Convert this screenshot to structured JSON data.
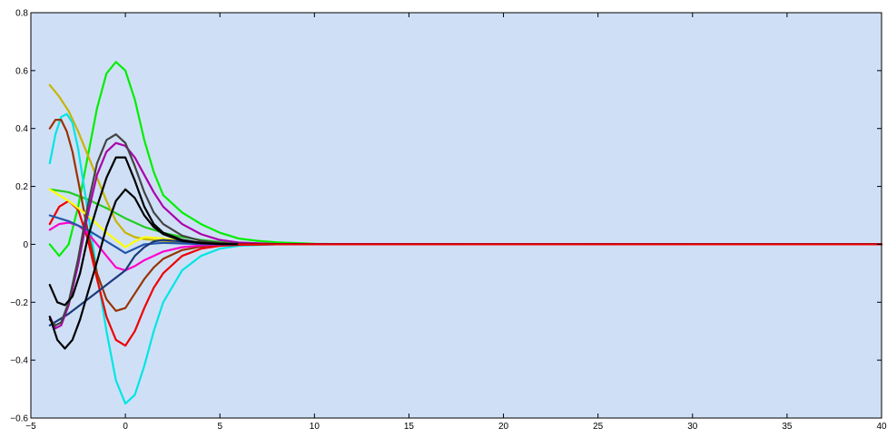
{
  "chart_data": {
    "type": "line",
    "title": "",
    "xlabel": "",
    "ylabel": "",
    "xlim": [
      -5,
      40
    ],
    "ylim": [
      -0.6,
      0.8
    ],
    "xticks": [
      -5,
      0,
      5,
      10,
      15,
      20,
      25,
      30,
      35,
      40
    ],
    "yticks": [
      -0.6,
      -0.4,
      -0.2,
      0,
      0.2,
      0.4,
      0.6,
      0.8
    ],
    "xtick_labels": [
      "−5",
      "0",
      "5",
      "10",
      "15",
      "20",
      "25",
      "30",
      "35",
      "40"
    ],
    "ytick_labels": [
      "−0.6",
      "−0.4",
      "−0.2",
      "0",
      "0.2",
      "0.4",
      "0.6",
      "0.8"
    ],
    "grid": false,
    "background": "#cfe0f6",
    "series": [
      {
        "color": "#00ee00",
        "x": [
          -4,
          -3.5,
          -3,
          -2.5,
          -2,
          -1.5,
          -1,
          -0.5,
          0,
          0.5,
          1,
          1.5,
          2,
          3,
          4,
          5,
          6,
          7,
          8,
          10,
          12,
          40
        ],
        "y": [
          0,
          -0.04,
          0.0,
          0.13,
          0.3,
          0.47,
          0.59,
          0.63,
          0.6,
          0.5,
          0.36,
          0.25,
          0.17,
          0.11,
          0.07,
          0.04,
          0.02,
          0.012,
          0.007,
          0.002,
          0,
          0
        ]
      },
      {
        "color": "#22cc22",
        "x": [
          -4,
          -3,
          -2,
          -1,
          0,
          1,
          2,
          3,
          4,
          5,
          6,
          8,
          40
        ],
        "y": [
          0.19,
          0.18,
          0.155,
          0.125,
          0.09,
          0.06,
          0.04,
          0.025,
          0.015,
          0.008,
          0.004,
          0.001,
          0
        ]
      },
      {
        "color": "#c8b400",
        "x": [
          -4,
          -3.5,
          -3,
          -2.5,
          -2,
          -1.5,
          -1,
          -0.5,
          0,
          0.5,
          1,
          2,
          3,
          4,
          5,
          6,
          8,
          40
        ],
        "y": [
          0.55,
          0.51,
          0.46,
          0.39,
          0.31,
          0.23,
          0.15,
          0.08,
          0.04,
          0.025,
          0.018,
          0.012,
          0.008,
          0.005,
          0.003,
          0.001,
          0,
          0
        ]
      },
      {
        "color": "#00e5e5",
        "x": [
          -4,
          -3.7,
          -3.4,
          -3.1,
          -2.8,
          -2.5,
          -2,
          -1.5,
          -1,
          -0.5,
          0,
          0.5,
          1,
          1.5,
          2,
          3,
          4,
          5,
          6,
          8,
          40
        ],
        "y": [
          0.28,
          0.38,
          0.44,
          0.45,
          0.42,
          0.33,
          0.12,
          -0.1,
          -0.3,
          -0.47,
          -0.55,
          -0.52,
          -0.42,
          -0.3,
          -0.2,
          -0.09,
          -0.04,
          -0.015,
          -0.005,
          0,
          0
        ]
      },
      {
        "color": "#993300",
        "x": [
          -4,
          -3.7,
          -3.4,
          -3.1,
          -2.8,
          -2.5,
          -2,
          -1.5,
          -1,
          -0.5,
          0,
          0.5,
          1,
          1.5,
          2,
          3,
          4,
          5,
          6,
          8,
          40
        ],
        "y": [
          0.4,
          0.43,
          0.43,
          0.39,
          0.32,
          0.22,
          0.05,
          -0.1,
          -0.19,
          -0.23,
          -0.22,
          -0.17,
          -0.12,
          -0.08,
          -0.05,
          -0.02,
          -0.008,
          -0.003,
          -0.001,
          0,
          0
        ]
      },
      {
        "color": "#ee0000",
        "x": [
          -4,
          -3.5,
          -3,
          -2.5,
          -2,
          -1.5,
          -1,
          -0.5,
          0,
          0.5,
          1,
          1.5,
          2,
          3,
          4,
          5,
          6,
          8,
          40
        ],
        "y": [
          0.07,
          0.13,
          0.15,
          0.12,
          0.02,
          -0.12,
          -0.25,
          -0.33,
          -0.35,
          -0.3,
          -0.22,
          -0.15,
          -0.1,
          -0.04,
          -0.015,
          -0.005,
          -0.002,
          0,
          0
        ]
      },
      {
        "color": "#ff00cc",
        "x": [
          -4,
          -3.5,
          -3,
          -2.5,
          -2,
          -1.5,
          -1,
          -0.5,
          0,
          0.5,
          1,
          2,
          3,
          4,
          5,
          6,
          8,
          40
        ],
        "y": [
          0.05,
          0.07,
          0.075,
          0.065,
          0.04,
          0.0,
          -0.04,
          -0.08,
          -0.09,
          -0.075,
          -0.055,
          -0.025,
          -0.01,
          -0.004,
          -0.001,
          0,
          0,
          0
        ]
      },
      {
        "color": "#ffff00",
        "x": [
          -4,
          -3,
          -2,
          -1,
          -0.5,
          0,
          0.5,
          1,
          2,
          3,
          4,
          5,
          6,
          8,
          40
        ],
        "y": [
          0.19,
          0.15,
          0.1,
          0.04,
          0.015,
          -0.01,
          0.01,
          0.025,
          0.02,
          0.012,
          0.007,
          0.004,
          0.002,
          0,
          0
        ]
      },
      {
        "color": "#2255aa",
        "x": [
          -4,
          -3,
          -2,
          -1,
          -0.5,
          0,
          0.5,
          1,
          2,
          3,
          4,
          5,
          6,
          8,
          40
        ],
        "y": [
          0.1,
          0.08,
          0.05,
          0.01,
          -0.01,
          -0.03,
          -0.015,
          0.0,
          0.005,
          0.003,
          0.001,
          0,
          0,
          0,
          0
        ]
      },
      {
        "color": "#1a3a7a",
        "x": [
          -4,
          -3,
          -2,
          -1,
          0,
          0.5,
          1,
          1.5,
          2,
          3,
          4,
          5,
          6,
          8,
          40
        ],
        "y": [
          -0.28,
          -0.24,
          -0.19,
          -0.14,
          -0.09,
          -0.04,
          -0.01,
          0.01,
          0.015,
          0.01,
          0.006,
          0.003,
          0.001,
          0,
          0
        ]
      },
      {
        "color": "#aa00aa",
        "x": [
          -4,
          -3.7,
          -3.4,
          -3,
          -2.5,
          -2,
          -1.5,
          -1,
          -0.5,
          0,
          0.5,
          1,
          1.5,
          2,
          3,
          4,
          5,
          6,
          8,
          40
        ],
        "y": [
          -0.25,
          -0.29,
          -0.28,
          -0.21,
          -0.07,
          0.1,
          0.24,
          0.32,
          0.35,
          0.34,
          0.3,
          0.24,
          0.18,
          0.13,
          0.07,
          0.035,
          0.015,
          0.006,
          0.001,
          0
        ]
      },
      {
        "color": "#444444",
        "x": [
          -4,
          -3.7,
          -3.4,
          -3,
          -2.5,
          -2,
          -1.5,
          -1,
          -0.5,
          0,
          0.5,
          1,
          1.5,
          2,
          3,
          4,
          5,
          6,
          8,
          40
        ],
        "y": [
          -0.26,
          -0.28,
          -0.27,
          -0.2,
          -0.05,
          0.13,
          0.28,
          0.36,
          0.38,
          0.35,
          0.27,
          0.18,
          0.11,
          0.07,
          0.03,
          0.012,
          0.005,
          0.002,
          0,
          0
        ]
      },
      {
        "color": "#000000",
        "x": [
          -4,
          -3.6,
          -3.2,
          -2.8,
          -2.4,
          -2,
          -1.5,
          -1,
          -0.5,
          0,
          0.5,
          1,
          1.5,
          2,
          3,
          4,
          5,
          6,
          8,
          40
        ],
        "y": [
          -0.14,
          -0.2,
          -0.21,
          -0.18,
          -0.1,
          0.02,
          0.13,
          0.23,
          0.3,
          0.3,
          0.22,
          0.13,
          0.07,
          0.04,
          0.015,
          0.005,
          0.002,
          0,
          0,
          0
        ]
      },
      {
        "color": "#000000",
        "x": [
          -4,
          -3.6,
          -3.2,
          -2.8,
          -2.4,
          -2,
          -1.5,
          -1,
          -0.5,
          0,
          0.5,
          1,
          1.5,
          2,
          3,
          4,
          5,
          6,
          8,
          40
        ],
        "y": [
          -0.25,
          -0.33,
          -0.36,
          -0.33,
          -0.26,
          -0.17,
          -0.06,
          0.06,
          0.15,
          0.19,
          0.16,
          0.1,
          0.06,
          0.035,
          0.012,
          0.004,
          0.001,
          0,
          0,
          0
        ]
      },
      {
        "color": "#ee0000",
        "x": [
          6,
          10,
          20,
          30,
          40
        ],
        "y": [
          0,
          0,
          0,
          0,
          0
        ]
      }
    ]
  }
}
